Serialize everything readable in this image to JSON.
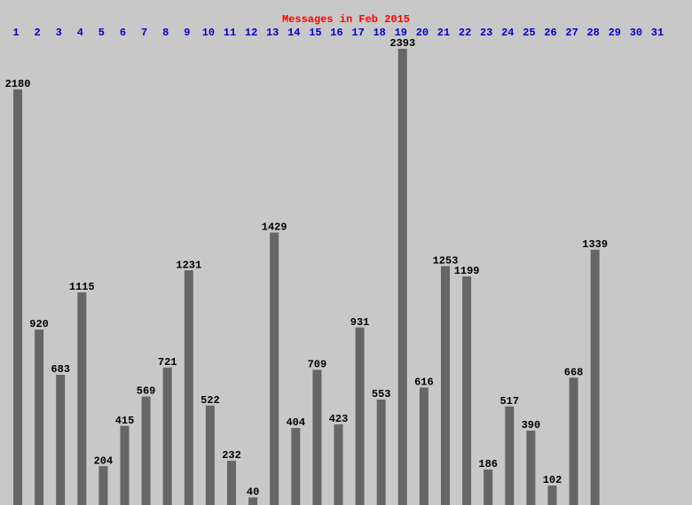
{
  "chart_data": {
    "type": "bar",
    "title": "Messages in Feb 2015",
    "categories": [
      "1",
      "2",
      "3",
      "4",
      "5",
      "6",
      "7",
      "8",
      "9",
      "10",
      "11",
      "12",
      "13",
      "14",
      "15",
      "16",
      "17",
      "18",
      "19",
      "20",
      "21",
      "22",
      "23",
      "24",
      "25",
      "26",
      "27",
      "28",
      "29",
      "30",
      "31"
    ],
    "values": [
      2180,
      920,
      683,
      1115,
      204,
      415,
      569,
      721,
      1231,
      522,
      232,
      40,
      1429,
      404,
      709,
      423,
      931,
      553,
      2393,
      616,
      1253,
      1199,
      186,
      517,
      390,
      102,
      668,
      1339,
      null,
      null,
      null
    ],
    "color": "#666666",
    "ylim": [
      0,
      2400
    ]
  }
}
